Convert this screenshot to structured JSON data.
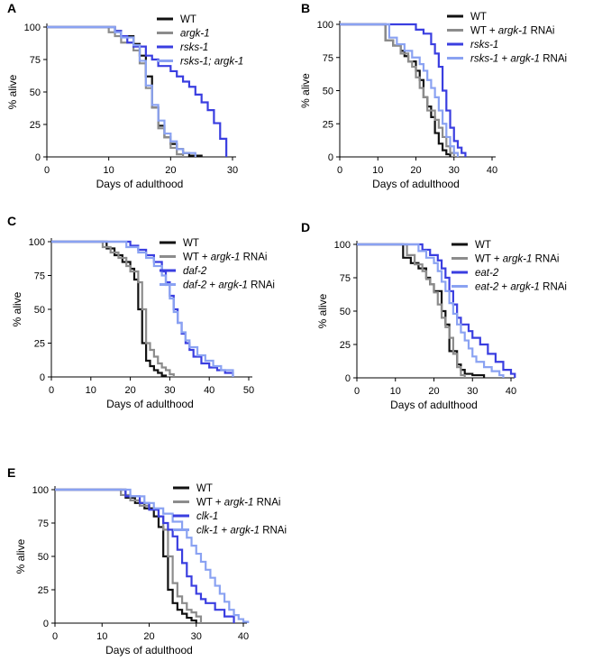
{
  "colors": {
    "wt": "#111111",
    "wt_rnai": "#8c8c8c",
    "mutant": "#3a3ee0",
    "mutant_rnai": "#8aa2f2"
  },
  "chart_data": [
    {
      "panel": "A",
      "type": "line",
      "xlabel": "Days of adulthood",
      "ylabel": "% alive",
      "xlim": [
        0,
        30
      ],
      "ylim": [
        0,
        100
      ],
      "xticks": [
        0,
        10,
        20,
        30
      ],
      "yticks": [
        0,
        25,
        50,
        75,
        100
      ],
      "legend_position": "top-right",
      "series": [
        {
          "name": "WT",
          "label": [
            {
              "t": "WT",
              "i": false
            }
          ],
          "color": "#111111",
          "x": [
            0,
            9,
            11,
            12,
            14,
            15,
            16,
            17,
            18,
            19,
            20,
            21,
            22,
            23,
            25
          ],
          "y": [
            100,
            100,
            97,
            93,
            87,
            78,
            62,
            38,
            24,
            15,
            10,
            6,
            3,
            1,
            0
          ]
        },
        {
          "name": "argk-1",
          "label": [
            {
              "t": "argk-1",
              "i": true
            }
          ],
          "color": "#8c8c8c",
          "x": [
            0,
            8,
            10,
            11,
            12,
            14,
            15,
            16,
            17,
            18,
            19,
            20,
            21,
            22
          ],
          "y": [
            100,
            100,
            96,
            93,
            88,
            82,
            72,
            53,
            38,
            22,
            15,
            7,
            2,
            0
          ]
        },
        {
          "name": "rsks-1",
          "label": [
            {
              "t": "rsks-1",
              "i": true
            }
          ],
          "color": "#3a3ee0",
          "x": [
            0,
            9,
            11,
            12,
            13,
            14,
            16,
            17,
            18,
            20,
            21,
            22,
            23,
            24,
            25,
            26,
            27,
            28,
            29
          ],
          "y": [
            100,
            100,
            97,
            93,
            88,
            85,
            78,
            75,
            70,
            66,
            62,
            58,
            54,
            48,
            42,
            36,
            26,
            14,
            0
          ]
        },
        {
          "name": "rsks-1; argk-1",
          "label": [
            {
              "t": "rsks-1; argk-1",
              "i": true
            }
          ],
          "color": "#8aa2f2",
          "x": [
            0,
            9,
            11,
            12,
            14,
            15,
            16,
            17,
            18,
            19,
            20,
            21,
            22,
            24
          ],
          "y": [
            100,
            100,
            96,
            92,
            86,
            74,
            55,
            40,
            28,
            18,
            12,
            6,
            3,
            0
          ]
        }
      ]
    },
    {
      "panel": "B",
      "type": "line",
      "xlabel": "Days of adulthood",
      "ylabel": "% alive",
      "xlim": [
        0,
        40
      ],
      "ylim": [
        0,
        100
      ],
      "xticks": [
        0,
        10,
        20,
        30,
        40
      ],
      "yticks": [
        0,
        25,
        50,
        75,
        100
      ],
      "legend_position": "top-right",
      "series": [
        {
          "name": "WT",
          "label": [
            {
              "t": "WT",
              "i": false
            }
          ],
          "color": "#111111",
          "x": [
            0,
            10,
            12,
            14,
            16,
            17,
            18,
            20,
            21,
            22,
            23,
            24,
            25,
            26,
            27,
            28,
            29
          ],
          "y": [
            100,
            100,
            88,
            84,
            80,
            76,
            72,
            65,
            58,
            45,
            38,
            30,
            18,
            10,
            5,
            2,
            0
          ]
        },
        {
          "name": "WT + argk-1 RNAi",
          "label": [
            {
              "t": "WT + ",
              "i": false
            },
            {
              "t": "argk-1",
              "i": true
            },
            {
              "t": " RNAi",
              "i": false
            }
          ],
          "color": "#8c8c8c",
          "x": [
            0,
            11,
            12,
            14,
            16,
            18,
            19,
            20,
            21,
            22,
            23,
            25,
            26,
            27,
            28,
            29,
            30
          ],
          "y": [
            100,
            100,
            88,
            84,
            78,
            72,
            68,
            60,
            52,
            45,
            35,
            28,
            22,
            15,
            8,
            3,
            0
          ]
        },
        {
          "name": "rsks-1",
          "label": [
            {
              "t": "rsks-1",
              "i": true
            }
          ],
          "color": "#3a3ee0",
          "x": [
            0,
            17,
            20,
            22,
            24,
            25,
            26,
            27,
            28,
            29,
            30,
            31,
            32,
            33
          ],
          "y": [
            100,
            100,
            96,
            93,
            85,
            78,
            68,
            50,
            35,
            22,
            12,
            7,
            3,
            0
          ]
        },
        {
          "name": "rsks-1 + argk-1 RNAi",
          "label": [
            {
              "t": "rsks-1",
              "i": true
            },
            {
              "t": " + ",
              "i": false
            },
            {
              "t": "argk-1",
              "i": true
            },
            {
              "t": " RNAi",
              "i": false
            }
          ],
          "color": "#8aa2f2",
          "x": [
            0,
            11,
            13,
            15,
            17,
            19,
            21,
            22,
            23,
            24,
            25,
            26,
            27,
            28,
            29,
            30,
            31
          ],
          "y": [
            100,
            100,
            90,
            85,
            80,
            75,
            70,
            65,
            58,
            52,
            45,
            35,
            25,
            15,
            8,
            3,
            0
          ]
        }
      ]
    },
    {
      "panel": "C",
      "type": "line",
      "xlabel": "Days of adulthood",
      "ylabel": "% alive",
      "xlim": [
        0,
        50
      ],
      "ylim": [
        0,
        100
      ],
      "xticks": [
        0,
        10,
        20,
        30,
        40,
        50
      ],
      "yticks": [
        0,
        25,
        50,
        75,
        100
      ],
      "legend_position": "top-right",
      "series": [
        {
          "name": "WT",
          "label": [
            {
              "t": "WT",
              "i": false
            }
          ],
          "color": "#111111",
          "x": [
            0,
            12,
            14,
            16,
            18,
            20,
            21,
            22,
            23,
            24,
            25,
            26,
            27,
            28,
            29
          ],
          "y": [
            100,
            100,
            95,
            90,
            85,
            80,
            72,
            50,
            25,
            12,
            8,
            5,
            3,
            1,
            0
          ]
        },
        {
          "name": "WT + argk-1 RNAi",
          "label": [
            {
              "t": "WT + ",
              "i": false
            },
            {
              "t": "argk-1",
              "i": true
            },
            {
              "t": " RNAi",
              "i": false
            }
          ],
          "color": "#8c8c8c",
          "x": [
            0,
            11,
            13,
            15,
            17,
            19,
            20,
            22,
            23,
            24,
            25,
            26,
            27,
            28,
            29,
            30,
            31
          ],
          "y": [
            100,
            100,
            96,
            92,
            88,
            82,
            78,
            70,
            50,
            25,
            20,
            15,
            10,
            7,
            5,
            2,
            0
          ]
        },
        {
          "name": "daf-2",
          "label": [
            {
              "t": "daf-2",
              "i": true
            }
          ],
          "color": "#3a3ee0",
          "x": [
            0,
            16,
            20,
            22,
            24,
            26,
            28,
            29,
            30,
            31,
            32,
            33,
            34,
            35,
            36,
            38,
            40,
            42,
            44,
            46
          ],
          "y": [
            100,
            100,
            97,
            94,
            90,
            85,
            78,
            70,
            60,
            50,
            40,
            32,
            25,
            20,
            15,
            10,
            7,
            5,
            3,
            0
          ]
        },
        {
          "name": "daf-2 + argk-1 RNAi",
          "label": [
            {
              "t": "daf-2",
              "i": true
            },
            {
              "t": " + ",
              "i": false
            },
            {
              "t": "argk-1",
              "i": true
            },
            {
              "t": " RNAi",
              "i": false
            }
          ],
          "color": "#8aa2f2",
          "x": [
            0,
            15,
            19,
            22,
            24,
            26,
            28,
            29,
            30,
            31,
            32,
            33,
            34,
            35,
            37,
            39,
            41,
            43,
            46
          ],
          "y": [
            100,
            100,
            96,
            92,
            88,
            82,
            75,
            68,
            58,
            48,
            40,
            33,
            27,
            22,
            16,
            12,
            8,
            5,
            0
          ]
        }
      ]
    },
    {
      "panel": "D",
      "type": "line",
      "xlabel": "Days of adulthood",
      "ylabel": "% alive",
      "xlim": [
        0,
        40
      ],
      "ylim": [
        0,
        100
      ],
      "xticks": [
        0,
        10,
        20,
        30,
        40
      ],
      "yticks": [
        0,
        25,
        50,
        75,
        100
      ],
      "legend_position": "top-right",
      "series": [
        {
          "name": "WT",
          "label": [
            {
              "t": "WT",
              "i": false
            }
          ],
          "color": "#111111",
          "x": [
            0,
            10,
            12,
            14,
            16,
            18,
            19,
            20,
            22,
            23,
            24,
            26,
            27,
            28,
            30,
            33
          ],
          "y": [
            100,
            100,
            90,
            86,
            82,
            75,
            70,
            65,
            50,
            40,
            20,
            10,
            6,
            3,
            2,
            0
          ]
        },
        {
          "name": "WT + argk-1 RNAi",
          "label": [
            {
              "t": "WT + ",
              "i": false
            },
            {
              "t": "argk-1",
              "i": true
            },
            {
              "t": " RNAi",
              "i": false
            }
          ],
          "color": "#8c8c8c",
          "x": [
            0,
            11,
            13,
            15,
            17,
            18,
            19,
            20,
            21,
            22,
            23,
            24,
            25,
            26,
            27,
            28
          ],
          "y": [
            100,
            100,
            92,
            85,
            80,
            74,
            70,
            64,
            55,
            45,
            38,
            30,
            18,
            8,
            2,
            0
          ]
        },
        {
          "name": "eat-2",
          "label": [
            {
              "t": "eat-2",
              "i": true
            }
          ],
          "color": "#3a3ee0",
          "x": [
            0,
            15,
            17,
            19,
            21,
            22,
            23,
            24,
            25,
            26,
            27,
            29,
            30,
            32,
            34,
            36,
            38,
            40,
            41
          ],
          "y": [
            100,
            100,
            96,
            92,
            88,
            82,
            75,
            65,
            55,
            45,
            40,
            35,
            30,
            25,
            18,
            12,
            6,
            3,
            0
          ]
        },
        {
          "name": "eat-2 + argk-1 RNAi",
          "label": [
            {
              "t": "eat-2",
              "i": true
            },
            {
              "t": " + ",
              "i": false
            },
            {
              "t": "argk-1",
              "i": true
            },
            {
              "t": " RNAi",
              "i": false
            }
          ],
          "color": "#8aa2f2",
          "x": [
            0,
            14,
            16,
            18,
            20,
            21,
            22,
            23,
            24,
            25,
            26,
            27,
            28,
            29,
            30,
            31,
            33,
            35,
            37,
            38
          ],
          "y": [
            100,
            100,
            95,
            90,
            86,
            80,
            72,
            65,
            56,
            48,
            40,
            34,
            28,
            22,
            16,
            12,
            8,
            5,
            2,
            0
          ]
        }
      ]
    },
    {
      "panel": "E",
      "type": "line",
      "xlabel": "Days of adulthood",
      "ylabel": "% alive",
      "xlim": [
        0,
        40
      ],
      "ylim": [
        0,
        100
      ],
      "xticks": [
        0,
        10,
        20,
        30,
        40
      ],
      "yticks": [
        0,
        25,
        50,
        75,
        100
      ],
      "legend_position": "top-right",
      "series": [
        {
          "name": "WT",
          "label": [
            {
              "t": "WT",
              "i": false
            }
          ],
          "color": "#111111",
          "x": [
            0,
            13,
            15,
            17,
            19,
            21,
            22,
            23,
            24,
            25,
            26,
            27,
            28,
            29,
            30
          ],
          "y": [
            100,
            100,
            94,
            90,
            86,
            80,
            72,
            50,
            25,
            15,
            10,
            7,
            4,
            2,
            0
          ]
        },
        {
          "name": "WT + argk-1 RNAi",
          "label": [
            {
              "t": "WT + ",
              "i": false
            },
            {
              "t": "argk-1",
              "i": true
            },
            {
              "t": " RNAi",
              "i": false
            }
          ],
          "color": "#8c8c8c",
          "x": [
            0,
            12,
            14,
            16,
            18,
            20,
            22,
            23,
            24,
            25,
            26,
            27,
            28,
            29,
            30,
            31
          ],
          "y": [
            100,
            100,
            96,
            92,
            88,
            85,
            80,
            70,
            50,
            30,
            20,
            15,
            10,
            8,
            5,
            0
          ]
        },
        {
          "name": "clk-1",
          "label": [
            {
              "t": "clk-1",
              "i": true
            }
          ],
          "color": "#3a3ee0",
          "x": [
            0,
            12,
            15,
            18,
            20,
            22,
            23,
            24,
            25,
            26,
            27,
            28,
            29,
            30,
            31,
            32,
            34,
            36,
            38
          ],
          "y": [
            100,
            100,
            95,
            90,
            85,
            80,
            75,
            70,
            65,
            55,
            45,
            35,
            28,
            22,
            18,
            15,
            10,
            5,
            0
          ]
        },
        {
          "name": "clk-1 + argk-1 RNAi",
          "label": [
            {
              "t": "clk-1",
              "i": true
            },
            {
              "t": " + ",
              "i": false
            },
            {
              "t": "argk-1",
              "i": true
            },
            {
              "t": " RNAi",
              "i": false
            }
          ],
          "color": "#8aa2f2",
          "x": [
            0,
            13,
            16,
            19,
            21,
            23,
            25,
            27,
            28,
            29,
            30,
            31,
            32,
            33,
            34,
            35,
            36,
            37,
            38,
            39,
            40,
            41
          ],
          "y": [
            100,
            100,
            95,
            90,
            86,
            82,
            76,
            70,
            64,
            58,
            52,
            46,
            40,
            34,
            28,
            22,
            16,
            10,
            6,
            3,
            1,
            0
          ]
        }
      ]
    }
  ]
}
